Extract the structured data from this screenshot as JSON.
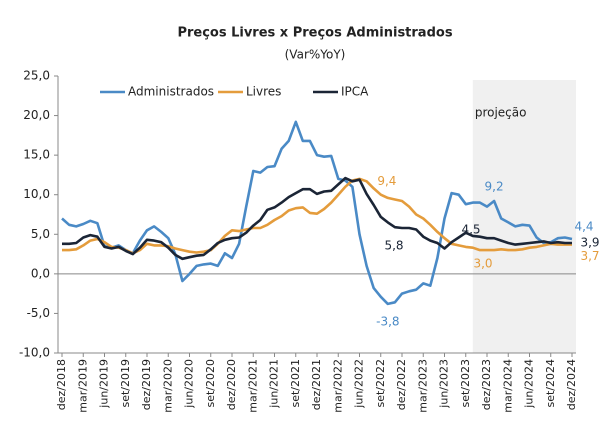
{
  "chart_data": {
    "type": "line",
    "title": "Preços Livres x Preços Administrados",
    "subtitle": "(Var%YoY)",
    "shade_label": "projeção",
    "shade_start": 58,
    "legend": "top-left",
    "categories": [
      "dez/2018",
      null,
      null,
      "mar/2019",
      null,
      null,
      "jun/2019",
      null,
      null,
      "set/2019",
      null,
      null,
      "dez/2019",
      null,
      null,
      "mar/2020",
      null,
      null,
      "jun/2020",
      null,
      null,
      "set/2020",
      null,
      null,
      "dez/2020",
      null,
      null,
      "mar/2021",
      null,
      null,
      "jun/2021",
      null,
      null,
      "set/2021",
      null,
      null,
      "dez/2021",
      null,
      null,
      "mar/2022",
      null,
      null,
      "jun/2022",
      null,
      null,
      "set/2022",
      null,
      null,
      "dez/2022",
      null,
      null,
      "mar/2023",
      null,
      null,
      "jun/2023",
      null,
      null,
      "set/2023",
      null,
      null,
      "dez/2023",
      null,
      null,
      "mar/2024",
      null,
      null,
      "jun/2024",
      null,
      null,
      "set/2024",
      null,
      null,
      "dez/2024"
    ],
    "ylim": [
      -10,
      25
    ],
    "yticks": [
      {
        "value": -10,
        "label": "-10,0"
      },
      {
        "value": -5,
        "label": "-5,0"
      },
      {
        "value": 0,
        "label": "0,0"
      },
      {
        "value": 5,
        "label": "5,0"
      },
      {
        "value": 10,
        "label": "10,0"
      },
      {
        "value": 15,
        "label": "15,0"
      },
      {
        "value": 20,
        "label": "20,0"
      },
      {
        "value": 25,
        "label": "25,0"
      }
    ],
    "series": [
      {
        "name": "Administrados",
        "color": "#4a8ac6",
        "values": [
          7.0,
          6.2,
          6.0,
          6.3,
          6.7,
          6.4,
          3.5,
          3.3,
          3.6,
          3.0,
          2.6,
          4.2,
          5.5,
          6.0,
          5.3,
          4.5,
          2.5,
          -0.9,
          0.0,
          1.0,
          1.2,
          1.3,
          1.0,
          2.6,
          2.0,
          3.8,
          8.5,
          13.0,
          12.8,
          13.5,
          13.6,
          15.8,
          16.8,
          19.2,
          16.8,
          16.8,
          15.0,
          14.8,
          14.9,
          12.0,
          11.8,
          11.0,
          5.0,
          1.0,
          -1.8,
          -2.9,
          -3.8,
          -3.6,
          -2.5,
          -2.2,
          -2.0,
          -1.2,
          -1.5,
          2.0,
          7.0,
          10.2,
          10.0,
          8.8,
          9.0,
          9.0,
          8.5,
          9.2,
          7.0,
          6.5,
          6.0,
          6.2,
          6.1,
          4.6,
          3.9,
          4.0,
          4.5,
          4.6,
          4.4
        ],
        "value_labels": [
          null,
          null,
          null,
          null,
          null,
          null,
          null,
          null,
          null,
          null,
          null,
          null,
          null,
          null,
          null,
          null,
          null,
          null,
          null,
          null,
          null,
          null,
          null,
          null,
          null,
          null,
          null,
          null,
          null,
          null,
          null,
          null,
          null,
          null,
          null,
          null,
          null,
          null,
          null,
          null,
          null,
          null,
          null,
          null,
          null,
          null,
          "-3,8",
          null,
          null,
          null,
          null,
          null,
          null,
          null,
          null,
          null,
          null,
          null,
          null,
          null,
          null,
          "9,2",
          null,
          null,
          null,
          null,
          null,
          null,
          null,
          null,
          null,
          null,
          "4,4"
        ]
      },
      {
        "name": "Livres",
        "color": "#e49c3c",
        "values": [
          3.0,
          3.0,
          3.1,
          3.6,
          4.2,
          4.4,
          4.0,
          3.4,
          3.3,
          3.0,
          2.6,
          3.0,
          3.8,
          3.6,
          3.6,
          3.5,
          3.2,
          3.0,
          2.8,
          2.7,
          2.8,
          3.0,
          3.8,
          4.8,
          5.5,
          5.4,
          5.6,
          5.8,
          5.8,
          6.2,
          6.8,
          7.3,
          8.0,
          8.3,
          8.4,
          7.7,
          7.6,
          8.2,
          9.0,
          10.0,
          11.0,
          11.8,
          12.0,
          11.7,
          10.8,
          10.0,
          9.6,
          9.4,
          9.2,
          8.5,
          7.5,
          7.0,
          6.2,
          5.3,
          4.5,
          3.8,
          3.6,
          3.4,
          3.3,
          3.0,
          3.0,
          3.0,
          3.1,
          3.0,
          3.0,
          3.1,
          3.3,
          3.4,
          3.6,
          3.8,
          3.7,
          3.7,
          3.7
        ],
        "value_labels": [
          null,
          null,
          null,
          null,
          null,
          null,
          null,
          null,
          null,
          null,
          null,
          null,
          null,
          null,
          null,
          null,
          null,
          null,
          null,
          null,
          null,
          null,
          null,
          null,
          null,
          null,
          null,
          null,
          null,
          null,
          null,
          null,
          null,
          null,
          null,
          null,
          null,
          null,
          null,
          null,
          null,
          null,
          null,
          null,
          null,
          null,
          null,
          "9,4",
          null,
          null,
          null,
          null,
          null,
          null,
          null,
          null,
          null,
          null,
          null,
          null,
          "3,0",
          null,
          null,
          null,
          null,
          null,
          null,
          null,
          null,
          null,
          null,
          null,
          "3,7"
        ]
      },
      {
        "name": "IPCA",
        "color": "#1b2536",
        "values": [
          3.8,
          3.8,
          3.9,
          4.6,
          4.9,
          4.7,
          3.4,
          3.2,
          3.4,
          2.9,
          2.5,
          3.3,
          4.3,
          4.2,
          4.0,
          3.3,
          2.4,
          1.9,
          2.1,
          2.3,
          2.4,
          3.1,
          3.9,
          4.3,
          4.5,
          4.6,
          5.2,
          6.1,
          6.8,
          8.1,
          8.4,
          9.0,
          9.7,
          10.2,
          10.7,
          10.7,
          10.1,
          10.4,
          10.5,
          11.3,
          12.1,
          11.7,
          11.9,
          10.1,
          8.7,
          7.2,
          6.5,
          5.9,
          5.8,
          5.8,
          5.6,
          4.7,
          4.2,
          3.9,
          3.2,
          4.0,
          4.6,
          5.2,
          4.8,
          4.7,
          4.5,
          4.5,
          4.2,
          3.9,
          3.7,
          3.8,
          3.9,
          4.0,
          4.1,
          3.9,
          4.0,
          3.9,
          3.9
        ],
        "value_labels": [
          null,
          null,
          null,
          null,
          null,
          null,
          null,
          null,
          null,
          null,
          null,
          null,
          null,
          null,
          null,
          null,
          null,
          null,
          null,
          null,
          null,
          null,
          null,
          null,
          null,
          null,
          null,
          null,
          null,
          null,
          null,
          null,
          null,
          null,
          null,
          null,
          null,
          null,
          null,
          null,
          null,
          null,
          null,
          null,
          null,
          null,
          null,
          null,
          "5,8",
          null,
          null,
          null,
          null,
          null,
          null,
          null,
          null,
          null,
          null,
          null,
          "4,5",
          null,
          null,
          null,
          null,
          null,
          null,
          null,
          null,
          null,
          null,
          null,
          "3,9"
        ]
      }
    ]
  }
}
